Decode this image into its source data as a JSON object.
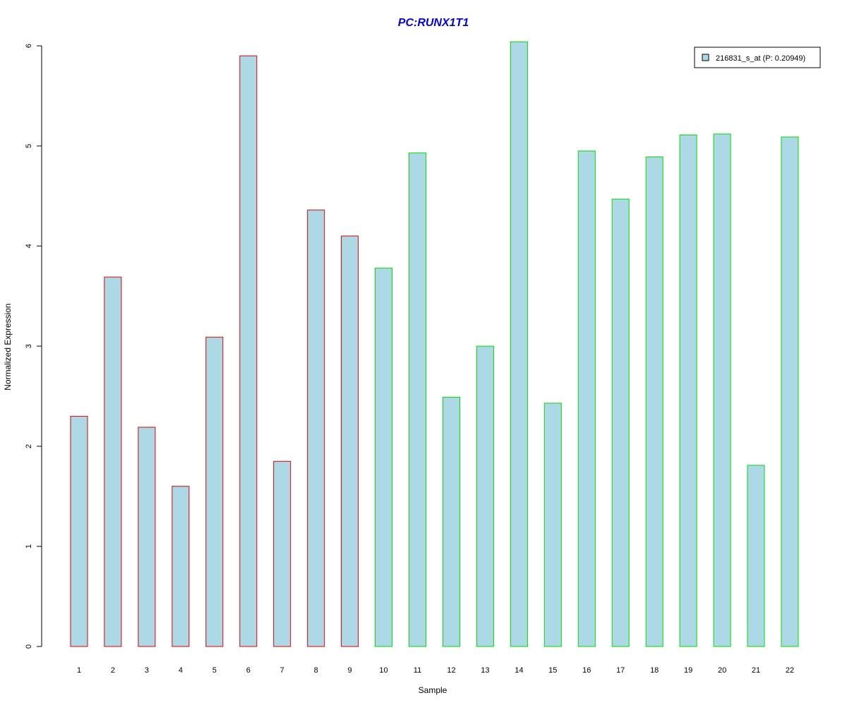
{
  "chart_data": {
    "type": "bar",
    "title": "PC:RUNX1T1",
    "xlabel": "Sample",
    "ylabel": "Normalized Expression",
    "ylim": [
      0,
      6
    ],
    "yticks": [
      "0",
      "1",
      "2",
      "3",
      "4",
      "5",
      "6"
    ],
    "categories": [
      "1",
      "2",
      "3",
      "4",
      "5",
      "6",
      "7",
      "8",
      "9",
      "10",
      "11",
      "12",
      "13",
      "14",
      "15",
      "16",
      "17",
      "18",
      "19",
      "20",
      "21",
      "22"
    ],
    "series": [
      {
        "name": "216831_s_at (P: 0.20949)",
        "values": [
          2.3,
          3.69,
          2.19,
          1.6,
          3.09,
          5.9,
          1.85,
          4.36,
          4.1,
          3.78,
          4.93,
          2.49,
          3.0,
          6.04,
          2.43,
          4.95,
          4.47,
          4.89,
          5.11,
          5.12,
          1.81,
          5.09
        ]
      }
    ],
    "groups": [
      {
        "border_color": "#dd0000",
        "samples": [
          1,
          2,
          3,
          4,
          5,
          6,
          7,
          8,
          9
        ]
      },
      {
        "border_color": "#00dd00",
        "samples": [
          10,
          11,
          12,
          13,
          14,
          15,
          16,
          17,
          18,
          19,
          20,
          21,
          22
        ]
      }
    ],
    "fill_color": "#add8e6",
    "title_color": "#0000ee",
    "legend": {
      "position": "top-right"
    },
    "grid": false
  }
}
